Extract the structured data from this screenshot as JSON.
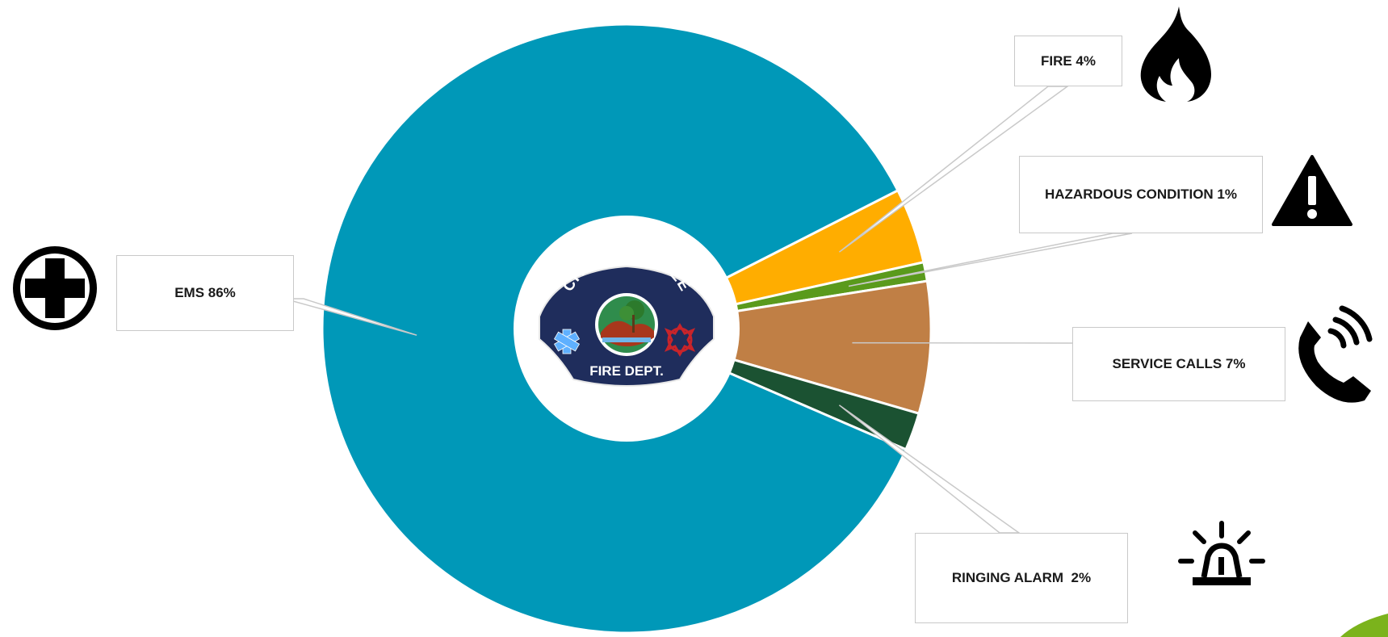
{
  "chart_data": {
    "type": "pie",
    "donut": true,
    "title": "",
    "categories": [
      "FIRE",
      "HAZARDOUS CONDITION",
      "SERVICE CALLS",
      "RINGING ALARM",
      "EMS"
    ],
    "values": [
      4,
      1,
      7,
      2,
      86
    ],
    "labels": [
      "FIRE 4%",
      "HAZARDOUS CONDITION 1%",
      "SERVICE CALLS 7%",
      "RINGING ALARM  2%",
      "EMS 86%"
    ],
    "colors": [
      "#ffad00",
      "#5a9a1c",
      "#c07f45",
      "#1b5232",
      "#0098b8"
    ],
    "icons": [
      "flame-icon",
      "warning-icon",
      "phone-ringing-icon",
      "siren-icon",
      "medical-cross-icon"
    ],
    "legend": "none"
  },
  "logo": {
    "top_text": "CITY OF SANTEE",
    "bottom_text": "FIRE DEPT."
  }
}
